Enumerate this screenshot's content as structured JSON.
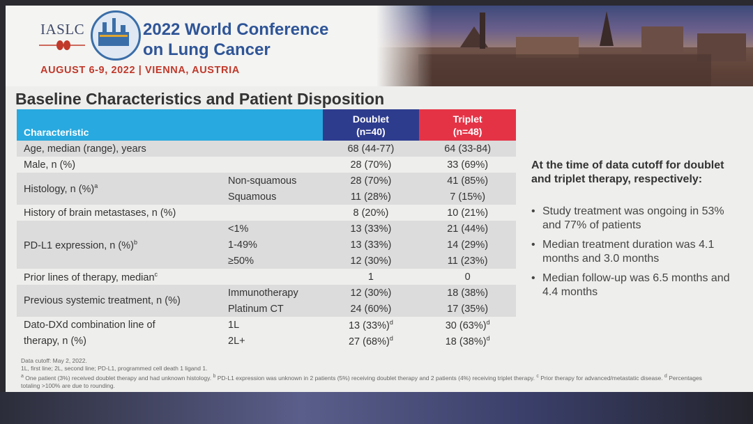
{
  "header": {
    "org": "IASLC",
    "conference_line1": "2022 World Conference",
    "conference_line2": "on Lung Cancer",
    "date_location": "AUGUST 6-9, 2022 | VIENNA, AUSTRIA"
  },
  "title": "Baseline Characteristics and Patient Disposition",
  "table": {
    "col_characteristic": "Characteristic",
    "col_doublet": "Doublet",
    "col_doublet_n": "(n=40)",
    "col_triplet": "Triplet",
    "col_triplet_n": "(n=48)",
    "rows": [
      {
        "label": "Age, median (range), years",
        "sub": "",
        "doublet": "68 (44-77)",
        "triplet": "64 (33-84)"
      },
      {
        "label": "Male, n (%)",
        "sub": "",
        "doublet": "28 (70%)",
        "triplet": "33 (69%)"
      },
      {
        "label": "Histology, n (%)",
        "label_sup": "a",
        "sub": "Non-squamous",
        "doublet": "28 (70%)",
        "triplet": "41 (85%)"
      },
      {
        "label": "",
        "sub": "Squamous",
        "doublet": "11 (28%)",
        "triplet": "7 (15%)"
      },
      {
        "label": "History of brain metastases, n (%)",
        "sub": "",
        "doublet": "8 (20%)",
        "triplet": "10 (21%)"
      },
      {
        "label": "",
        "sub": "<1%",
        "doublet": "13 (33%)",
        "triplet": "21 (44%)"
      },
      {
        "label": "PD-L1 expression, n (%)",
        "label_sup": "b",
        "sub": "1-49%",
        "doublet": "13 (33%)",
        "triplet": "14 (29%)"
      },
      {
        "label": "",
        "sub": "≥50%",
        "doublet": "12 (30%)",
        "triplet": "11 (23%)"
      },
      {
        "label": "Prior lines of therapy, median",
        "label_sup": "c",
        "sub": "",
        "doublet": "1",
        "triplet": "0"
      },
      {
        "label": "Previous systemic treatment, n (%)",
        "sub": "Immunotherapy",
        "doublet": "12 (30%)",
        "triplet": "18 (38%)"
      },
      {
        "label": "",
        "sub": "Platinum CT",
        "doublet": "24 (60%)",
        "triplet": "17 (35%)"
      },
      {
        "label": "Dato-DXd combination line of",
        "sub": "1L",
        "doublet": "13 (33%)",
        "doublet_sup": "d",
        "triplet": "30 (63%)",
        "triplet_sup": "d"
      },
      {
        "label": "therapy, n (%)",
        "sub": "2L+",
        "doublet": "27 (68%)",
        "doublet_sup": "d",
        "triplet": "18 (38%)",
        "triplet_sup": "d"
      }
    ]
  },
  "side": {
    "heading": "At the time of data cutoff for doublet and triplet therapy, respectively:",
    "bullets": [
      "Study treatment was ongoing in 53% and 77% of patients",
      "Median treatment duration was 4.1 months and 3.0 months",
      "Median follow-up was 6.5 months and 4.4 months"
    ],
    "bullet_glyph": "•"
  },
  "footnotes": {
    "line1": "Data cutoff: May 2, 2022.",
    "line2": "1L, first line; 2L, second line; PD-L1, programmed cell death 1 ligand 1.",
    "sup_a": "a",
    "note_a": " One patient (3%) received doublet therapy and had unknown histology. ",
    "sup_b": "b",
    "note_b": " PD-L1 expression was unknown in 2 patients (5%) receiving doublet therapy and 2 patients (4%) receiving triplet therapy. ",
    "sup_c": "c",
    "note_c": " Prior therapy for advanced/metastatic disease. ",
    "sup_d": "d",
    "note_d": " Percentages totaling >100% are due to rounding."
  },
  "colors": {
    "header_cyan": "#28a9df",
    "doublet_navy": "#2e3c8e",
    "triplet_red": "#e53346",
    "conference_blue": "#2f5597",
    "date_red": "#c0392b"
  }
}
